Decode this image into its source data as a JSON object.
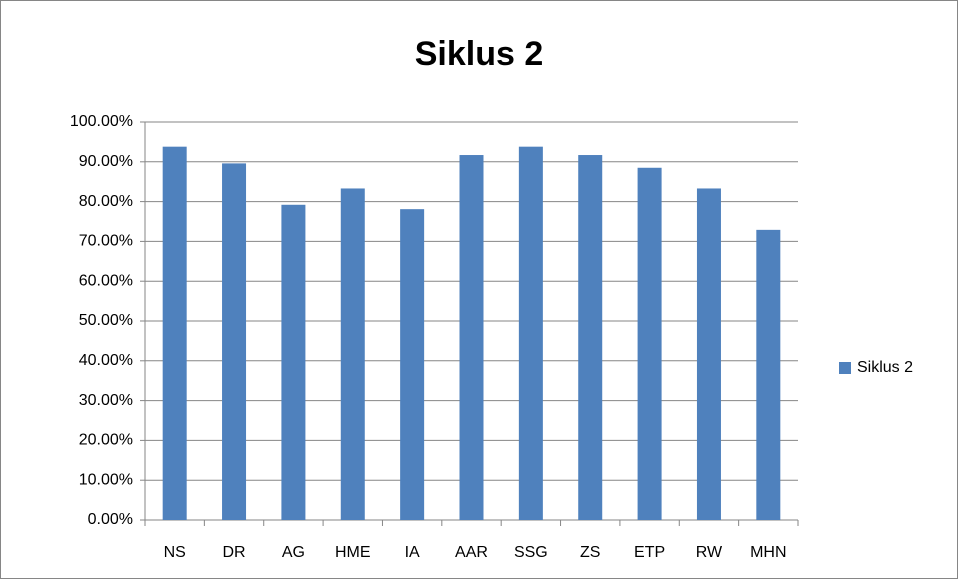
{
  "chart_data": {
    "type": "bar",
    "title": "Siklus 2",
    "categories": [
      "NS",
      "DR",
      "AG",
      "HME",
      "IA",
      "AAR",
      "SSG",
      "ZS",
      "ETP",
      "RW",
      "MHN"
    ],
    "series": [
      {
        "name": "Siklus 2",
        "color": "#4f81bd",
        "values": [
          93.8,
          89.6,
          79.2,
          83.3,
          78.1,
          91.7,
          93.8,
          91.7,
          88.5,
          83.3,
          72.9
        ]
      }
    ],
    "ylim": [
      0,
      100
    ],
    "yticks": [
      {
        "value": 0,
        "label": "0.00%"
      },
      {
        "value": 10,
        "label": "10.00%"
      },
      {
        "value": 20,
        "label": "20.00%"
      },
      {
        "value": 30,
        "label": "30.00%"
      },
      {
        "value": 40,
        "label": "40.00%"
      },
      {
        "value": 50,
        "label": "50.00%"
      },
      {
        "value": 60,
        "label": "60.00%"
      },
      {
        "value": 70,
        "label": "70.00%"
      },
      {
        "value": 80,
        "label": "80.00%"
      },
      {
        "value": 90,
        "label": "90.00%"
      },
      {
        "value": 100,
        "label": "100.00%"
      }
    ],
    "grid": true,
    "legend": "right"
  }
}
